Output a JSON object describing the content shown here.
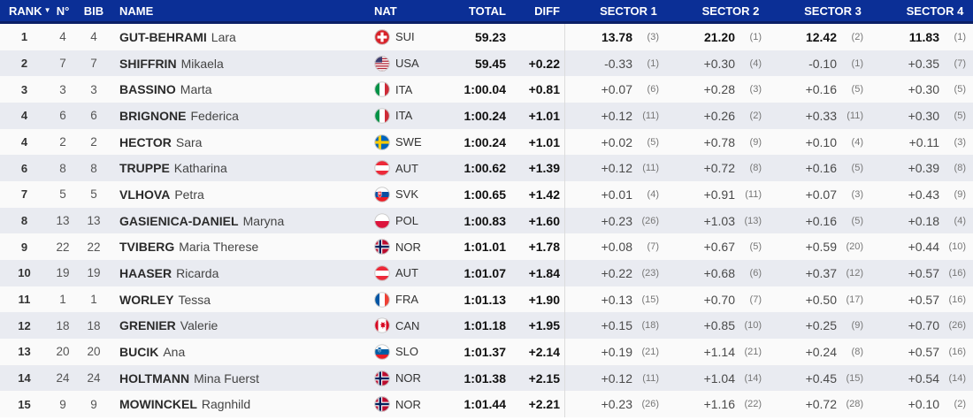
{
  "colors": {
    "header_bg": "#0b2f96",
    "header_border": "#0a1f66",
    "row_odd": "#fafafa",
    "row_even": "#e9ebf1",
    "separator": "#dcdcdc"
  },
  "table": {
    "columns": {
      "rank": "RANK",
      "sort_indicator": "▼",
      "n": "N°",
      "bib": "BIB",
      "name": "NAME",
      "nat": "NAT",
      "total": "TOTAL",
      "diff": "DIFF",
      "sectors": [
        "SECTOR 1",
        "SECTOR 2",
        "SECTOR 3",
        "SECTOR 4"
      ]
    },
    "rows": [
      {
        "rank": "1",
        "n": "4",
        "bib": "4",
        "surname": "GUT-BEHRAMI",
        "firstname": "Lara",
        "nat": "SUI",
        "total": "59.23",
        "diff": "",
        "leader": true,
        "sectors": [
          {
            "v": "13.78",
            "r": "(3)"
          },
          {
            "v": "21.20",
            "r": "(1)"
          },
          {
            "v": "12.42",
            "r": "(2)"
          },
          {
            "v": "11.83",
            "r": "(1)"
          }
        ]
      },
      {
        "rank": "2",
        "n": "7",
        "bib": "7",
        "surname": "SHIFFRIN",
        "firstname": "Mikaela",
        "nat": "USA",
        "total": "59.45",
        "diff": "+0.22",
        "leader": false,
        "sectors": [
          {
            "v": "-0.33",
            "r": "(1)"
          },
          {
            "v": "+0.30",
            "r": "(4)"
          },
          {
            "v": "-0.10",
            "r": "(1)"
          },
          {
            "v": "+0.35",
            "r": "(7)"
          }
        ]
      },
      {
        "rank": "3",
        "n": "3",
        "bib": "3",
        "surname": "BASSINO",
        "firstname": "Marta",
        "nat": "ITA",
        "total": "1:00.04",
        "diff": "+0.81",
        "leader": false,
        "sectors": [
          {
            "v": "+0.07",
            "r": "(6)"
          },
          {
            "v": "+0.28",
            "r": "(3)"
          },
          {
            "v": "+0.16",
            "r": "(5)"
          },
          {
            "v": "+0.30",
            "r": "(5)"
          }
        ]
      },
      {
        "rank": "4",
        "n": "6",
        "bib": "6",
        "surname": "BRIGNONE",
        "firstname": "Federica",
        "nat": "ITA",
        "total": "1:00.24",
        "diff": "+1.01",
        "leader": false,
        "sectors": [
          {
            "v": "+0.12",
            "r": "(11)"
          },
          {
            "v": "+0.26",
            "r": "(2)"
          },
          {
            "v": "+0.33",
            "r": "(11)"
          },
          {
            "v": "+0.30",
            "r": "(5)"
          }
        ]
      },
      {
        "rank": "4",
        "n": "2",
        "bib": "2",
        "surname": "HECTOR",
        "firstname": "Sara",
        "nat": "SWE",
        "total": "1:00.24",
        "diff": "+1.01",
        "leader": false,
        "sectors": [
          {
            "v": "+0.02",
            "r": "(5)"
          },
          {
            "v": "+0.78",
            "r": "(9)"
          },
          {
            "v": "+0.10",
            "r": "(4)"
          },
          {
            "v": "+0.11",
            "r": "(3)"
          }
        ]
      },
      {
        "rank": "6",
        "n": "8",
        "bib": "8",
        "surname": "TRUPPE",
        "firstname": "Katharina",
        "nat": "AUT",
        "total": "1:00.62",
        "diff": "+1.39",
        "leader": false,
        "sectors": [
          {
            "v": "+0.12",
            "r": "(11)"
          },
          {
            "v": "+0.72",
            "r": "(8)"
          },
          {
            "v": "+0.16",
            "r": "(5)"
          },
          {
            "v": "+0.39",
            "r": "(8)"
          }
        ]
      },
      {
        "rank": "7",
        "n": "5",
        "bib": "5",
        "surname": "VLHOVA",
        "firstname": "Petra",
        "nat": "SVK",
        "total": "1:00.65",
        "diff": "+1.42",
        "leader": false,
        "sectors": [
          {
            "v": "+0.01",
            "r": "(4)"
          },
          {
            "v": "+0.91",
            "r": "(11)"
          },
          {
            "v": "+0.07",
            "r": "(3)"
          },
          {
            "v": "+0.43",
            "r": "(9)"
          }
        ]
      },
      {
        "rank": "8",
        "n": "13",
        "bib": "13",
        "surname": "GASIENICA-DANIEL",
        "firstname": "Maryna",
        "nat": "POL",
        "total": "1:00.83",
        "diff": "+1.60",
        "leader": false,
        "sectors": [
          {
            "v": "+0.23",
            "r": "(26)"
          },
          {
            "v": "+1.03",
            "r": "(13)"
          },
          {
            "v": "+0.16",
            "r": "(5)"
          },
          {
            "v": "+0.18",
            "r": "(4)"
          }
        ]
      },
      {
        "rank": "9",
        "n": "22",
        "bib": "22",
        "surname": "TVIBERG",
        "firstname": "Maria Therese",
        "nat": "NOR",
        "total": "1:01.01",
        "diff": "+1.78",
        "leader": false,
        "sectors": [
          {
            "v": "+0.08",
            "r": "(7)"
          },
          {
            "v": "+0.67",
            "r": "(5)"
          },
          {
            "v": "+0.59",
            "r": "(20)"
          },
          {
            "v": "+0.44",
            "r": "(10)"
          }
        ]
      },
      {
        "rank": "10",
        "n": "19",
        "bib": "19",
        "surname": "HAASER",
        "firstname": "Ricarda",
        "nat": "AUT",
        "total": "1:01.07",
        "diff": "+1.84",
        "leader": false,
        "sectors": [
          {
            "v": "+0.22",
            "r": "(23)"
          },
          {
            "v": "+0.68",
            "r": "(6)"
          },
          {
            "v": "+0.37",
            "r": "(12)"
          },
          {
            "v": "+0.57",
            "r": "(16)"
          }
        ]
      },
      {
        "rank": "11",
        "n": "1",
        "bib": "1",
        "surname": "WORLEY",
        "firstname": "Tessa",
        "nat": "FRA",
        "total": "1:01.13",
        "diff": "+1.90",
        "leader": false,
        "sectors": [
          {
            "v": "+0.13",
            "r": "(15)"
          },
          {
            "v": "+0.70",
            "r": "(7)"
          },
          {
            "v": "+0.50",
            "r": "(17)"
          },
          {
            "v": "+0.57",
            "r": "(16)"
          }
        ]
      },
      {
        "rank": "12",
        "n": "18",
        "bib": "18",
        "surname": "GRENIER",
        "firstname": "Valerie",
        "nat": "CAN",
        "total": "1:01.18",
        "diff": "+1.95",
        "leader": false,
        "sectors": [
          {
            "v": "+0.15",
            "r": "(18)"
          },
          {
            "v": "+0.85",
            "r": "(10)"
          },
          {
            "v": "+0.25",
            "r": "(9)"
          },
          {
            "v": "+0.70",
            "r": "(26)"
          }
        ]
      },
      {
        "rank": "13",
        "n": "20",
        "bib": "20",
        "surname": "BUCIK",
        "firstname": "Ana",
        "nat": "SLO",
        "total": "1:01.37",
        "diff": "+2.14",
        "leader": false,
        "sectors": [
          {
            "v": "+0.19",
            "r": "(21)"
          },
          {
            "v": "+1.14",
            "r": "(21)"
          },
          {
            "v": "+0.24",
            "r": "(8)"
          },
          {
            "v": "+0.57",
            "r": "(16)"
          }
        ]
      },
      {
        "rank": "14",
        "n": "24",
        "bib": "24",
        "surname": "HOLTMANN",
        "firstname": "Mina Fuerst",
        "nat": "NOR",
        "total": "1:01.38",
        "diff": "+2.15",
        "leader": false,
        "sectors": [
          {
            "v": "+0.12",
            "r": "(11)"
          },
          {
            "v": "+1.04",
            "r": "(14)"
          },
          {
            "v": "+0.45",
            "r": "(15)"
          },
          {
            "v": "+0.54",
            "r": "(14)"
          }
        ]
      },
      {
        "rank": "15",
        "n": "9",
        "bib": "9",
        "surname": "MOWINCKEL",
        "firstname": "Ragnhild",
        "nat": "NOR",
        "total": "1:01.44",
        "diff": "+2.21",
        "leader": false,
        "sectors": [
          {
            "v": "+0.23",
            "r": "(26)"
          },
          {
            "v": "+1.16",
            "r": "(22)"
          },
          {
            "v": "+0.72",
            "r": "(28)"
          },
          {
            "v": "+0.10",
            "r": "(2)"
          }
        ]
      }
    ]
  }
}
